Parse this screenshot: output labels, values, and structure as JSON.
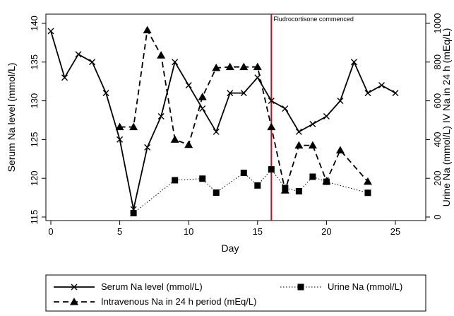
{
  "chart_data": {
    "type": "line",
    "xlabel": "Day",
    "ylabel_left": "Serum Na level (mmol/L)",
    "ylabel_right": "Urine Na (mmol/L) IV Na in 24 h (mEq/L)",
    "xlim": [
      0,
      25
    ],
    "ylim_left": [
      115,
      140
    ],
    "ylim_right": [
      0,
      1000
    ],
    "x_ticks": [
      "0",
      "5",
      "10",
      "15",
      "20",
      "25"
    ],
    "y_ticks_left": [
      "115",
      "120",
      "125",
      "130",
      "135",
      "140"
    ],
    "y_ticks_right": [
      "0",
      "200",
      "400",
      "600",
      "800",
      "1000"
    ],
    "grid": false,
    "legend_position": "bottom",
    "annotation": {
      "x": 16,
      "label": "Fludrocortisone commenced",
      "color": "#c0101c"
    },
    "series": [
      {
        "name": "Serum Na level (mmol/L)",
        "axis": "left",
        "marker": "x",
        "line_style": "solid",
        "x": [
          0,
          1,
          2,
          3,
          4,
          5,
          6,
          7,
          8,
          9,
          10,
          11,
          12,
          13,
          14,
          15,
          16,
          17,
          18,
          19,
          20,
          21,
          22,
          23,
          24,
          25
        ],
        "values": [
          139,
          133,
          136,
          135,
          131,
          125,
          116,
          124,
          128,
          135,
          132,
          129,
          126,
          131,
          131,
          133,
          130,
          129,
          126,
          127,
          128,
          130,
          135,
          131,
          132,
          131
        ]
      },
      {
        "name": "Urine Na (mmol/L)",
        "axis": "right",
        "marker": "square",
        "line_style": "dotted",
        "x": [
          6,
          9,
          11,
          12,
          14,
          15,
          16,
          17,
          18,
          19,
          20,
          23
        ],
        "values": [
          20,
          190,
          198,
          126,
          228,
          163,
          246,
          150,
          133,
          208,
          182,
          125
        ]
      },
      {
        "name": "Intravenous Na in 24 h period (mEq/L)",
        "axis": "right",
        "marker": "triangle",
        "line_style": "dashed",
        "x": [
          5,
          6,
          7,
          8,
          9,
          10,
          11,
          12,
          13,
          14,
          15,
          16,
          17,
          18,
          19,
          20,
          21,
          23
        ],
        "values": [
          465,
          465,
          965,
          835,
          400,
          373,
          620,
          770,
          775,
          775,
          775,
          465,
          138,
          370,
          370,
          185,
          345,
          183
        ]
      }
    ]
  }
}
